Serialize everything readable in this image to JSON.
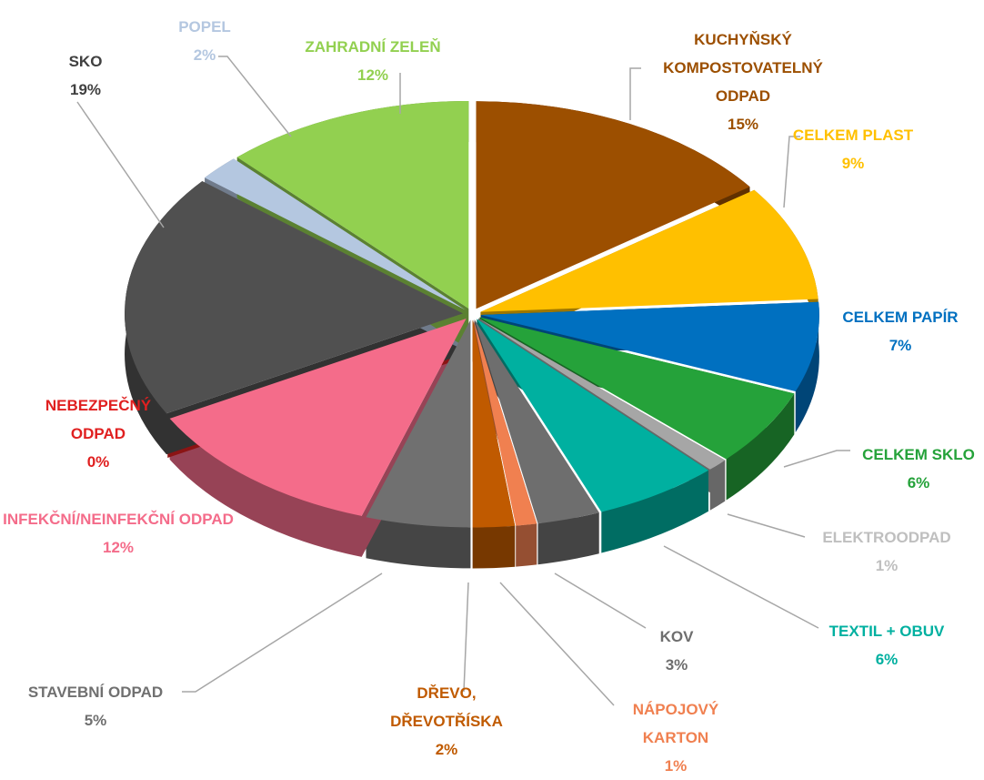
{
  "chart_data": {
    "type": "pie",
    "categories": [
      "KUCHYŇSKÝ KOMPOSTOVATELNÝ ODPAD",
      "CELKEM PLAST",
      "CELKEM PAPÍR",
      "CELKEM SKLO",
      "ELEKTROODPAD",
      "TEXTIL + OBUV",
      "KOV",
      "NÁPOJOVÝ KARTON",
      "DŘEVO, DŘEVOTŘÍSKA",
      "STAVEBNÍ ODPAD",
      "INFEKČNÍ/NEINFEKČNÍ ODPAD",
      "NEBEZPEČNÝ ODPAD",
      "SKO",
      "POPEL",
      "ZAHRADNÍ ZELEŇ"
    ],
    "values": [
      15,
      9,
      7,
      6,
      1,
      6,
      3,
      1,
      2,
      5,
      12,
      0,
      19,
      2,
      12
    ],
    "value_labels": [
      "15%",
      "9%",
      "7%",
      "6%",
      "1%",
      "6%",
      "3%",
      "1%",
      "2%",
      "5%",
      "12%",
      "0%",
      "19%",
      "2%",
      "12%"
    ],
    "colors": [
      "#9c4f00",
      "#ffc000",
      "#0070c0",
      "#25a23a",
      "#a6a6a6",
      "#00b0a0",
      "#6e6e6e",
      "#f08050",
      "#c05a00",
      "#707070",
      "#f46c8a",
      "#e02020",
      "#505050",
      "#b4c7e0",
      "#92d050"
    ],
    "label_colors": [
      "#9c4f00",
      "#ffc000",
      "#0070c0",
      "#25a23a",
      "#bfbfbf",
      "#00b0a0",
      "#6e6e6e",
      "#f08050",
      "#c05a00",
      "#707070",
      "#f46c8a",
      "#e02020",
      "#404040",
      "#b4c7e0",
      "#92d050"
    ]
  }
}
